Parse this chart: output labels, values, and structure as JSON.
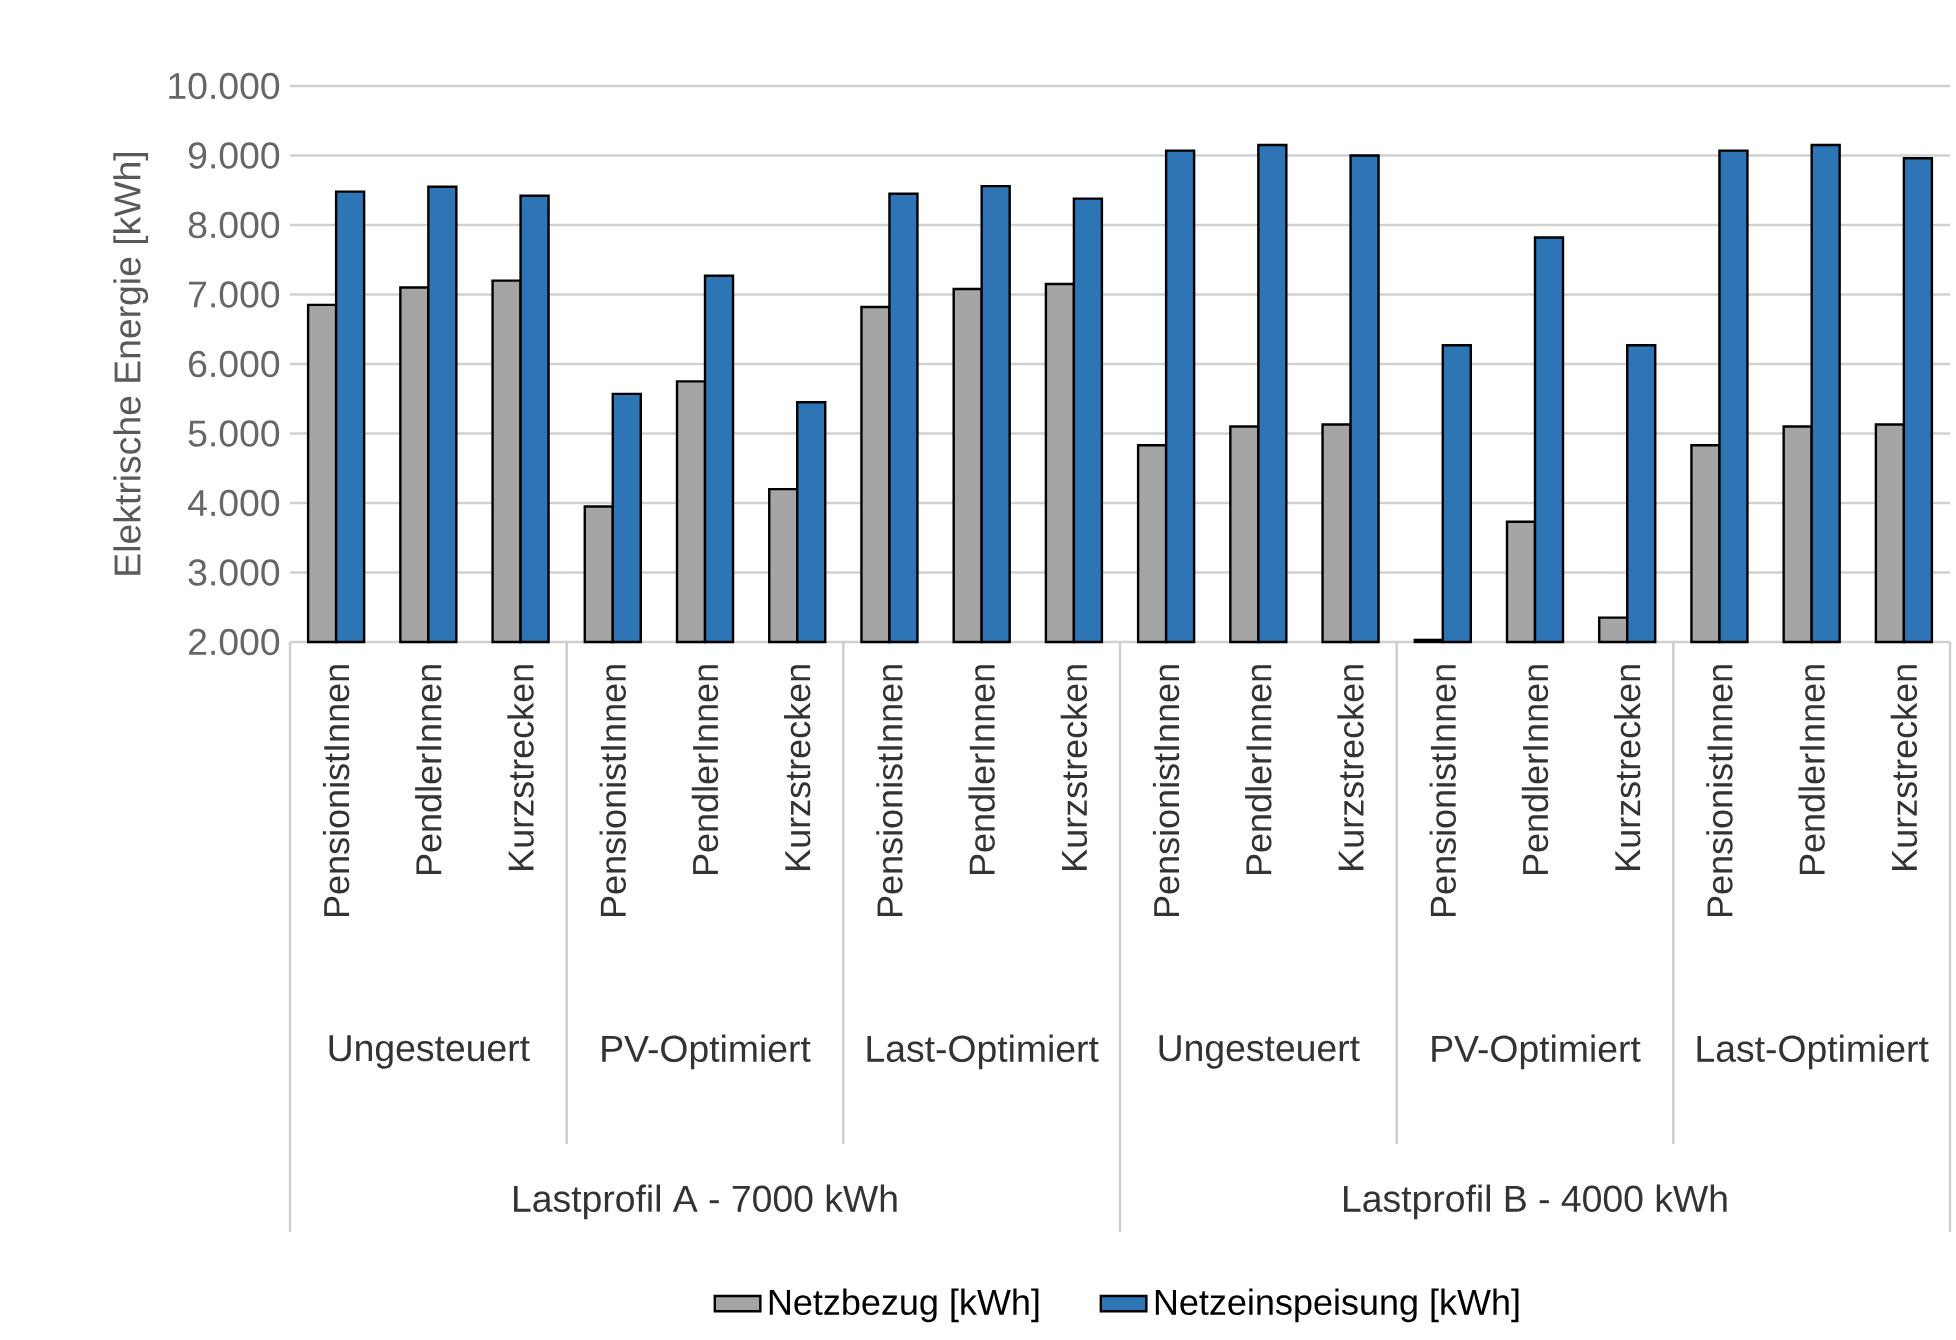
{
  "chart_data": {
    "type": "bar",
    "ylabel": "Elektrische Energie [kWh]",
    "categories": [
      "PensionistInnen",
      "PendlerInnen",
      "Kurzstrecken",
      "PensionistInnen",
      "PendlerInnen",
      "Kurzstrecken",
      "PensionistInnen",
      "PendlerInnen",
      "Kurzstrecken",
      "PensionistInnen",
      "PendlerInnen",
      "Kurzstrecken",
      "PensionistInnen",
      "PendlerInnen",
      "Kurzstrecken",
      "PensionistInnen",
      "PendlerInnen",
      "Kurzstrecken"
    ],
    "series": [
      {
        "name": "Netzbezug [kWh]",
        "color": "#a5a5a5",
        "values": [
          6850,
          7100,
          7200,
          3950,
          5750,
          4200,
          6820,
          7080,
          7150,
          4830,
          5100,
          5130,
          2030,
          3730,
          2350,
          4830,
          5100,
          5130
        ]
      },
      {
        "name": "Netzeinspeisung [kWh]",
        "color": "#2e75b6",
        "values": [
          8480,
          8550,
          8420,
          5570,
          7270,
          5450,
          8450,
          8560,
          8380,
          9070,
          9150,
          9000,
          6270,
          7820,
          6270,
          9070,
          9150,
          8960
        ]
      }
    ],
    "annotations": [
      "Ungesteuert",
      "PV-Optimiert",
      "Last-Optimiert",
      "Ungesteuert",
      "PV-Optimiert",
      "Last-Optimiert",
      "Lastprofil A - 7000 kWh",
      "Lastprofil B - 4000 kWh"
    ],
    "ylim": [
      2000,
      10000
    ],
    "yticks": [
      {
        "value": 2000,
        "label": "2.000"
      },
      {
        "value": 3000,
        "label": "3.000"
      },
      {
        "value": 4000,
        "label": "4.000"
      },
      {
        "value": 5000,
        "label": "5.000"
      },
      {
        "value": 6000,
        "label": "6.000"
      },
      {
        "value": 7000,
        "label": "7.000"
      },
      {
        "value": 8000,
        "label": "8.000"
      },
      {
        "value": 9000,
        "label": "9.000"
      },
      {
        "value": 10000,
        "label": "10.000"
      }
    ],
    "grid": "y",
    "legend": "bottom"
  }
}
